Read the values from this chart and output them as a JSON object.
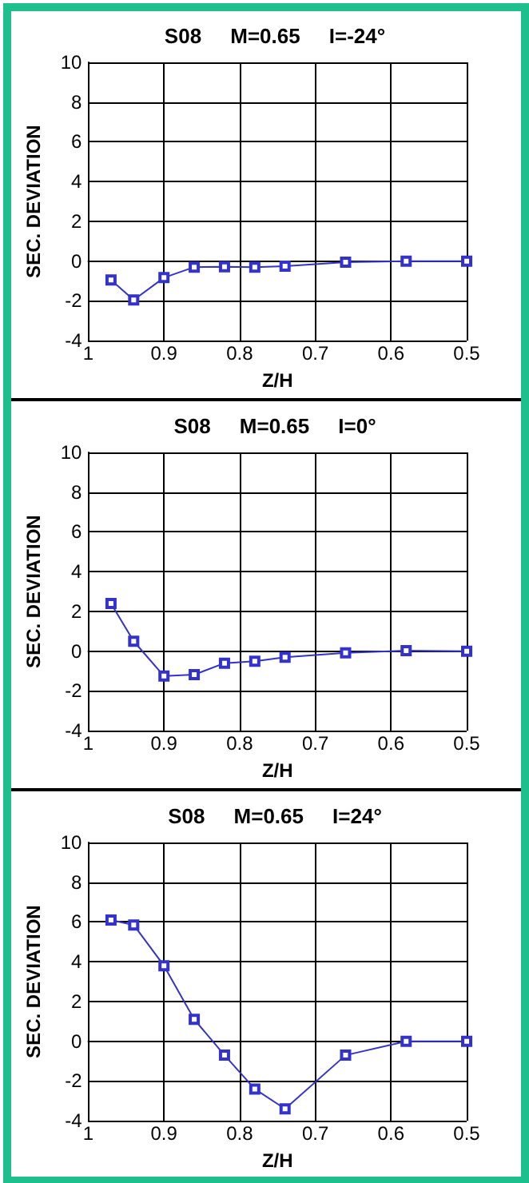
{
  "chart_data": [
    {
      "type": "line",
      "title": "S08     M=0.65     I=-24°",
      "xlabel": "Z/H",
      "ylabel": "SEC. DEVIATION",
      "xlim": [
        1,
        0.5
      ],
      "xticks": [
        1,
        0.9,
        0.8,
        0.7,
        0.6,
        0.5
      ],
      "ylim": [
        -4,
        10
      ],
      "yticks": [
        -4,
        -2,
        0,
        2,
        4,
        6,
        8,
        10
      ],
      "grid": true,
      "marker": "square",
      "line_style": "solid",
      "x": [
        0.97,
        0.94,
        0.9,
        0.86,
        0.82,
        0.78,
        0.74,
        0.66,
        0.58,
        0.5
      ],
      "series": [
        {
          "color": "#3333cc",
          "values": [
            -0.95,
            -1.95,
            -0.83,
            -0.3,
            -0.28,
            -0.3,
            -0.25,
            -0.05,
            0,
            0
          ]
        }
      ]
    },
    {
      "type": "line",
      "title": "S08     M=0.65     I=0°",
      "xlabel": "Z/H",
      "ylabel": "SEC. DEVIATION",
      "xlim": [
        1,
        0.5
      ],
      "xticks": [
        1,
        0.9,
        0.8,
        0.7,
        0.6,
        0.5
      ],
      "ylim": [
        -4,
        10
      ],
      "yticks": [
        -4,
        -2,
        0,
        2,
        4,
        6,
        8,
        10
      ],
      "grid": true,
      "marker": "square",
      "line_style": "solid",
      "x": [
        0.97,
        0.94,
        0.9,
        0.86,
        0.82,
        0.78,
        0.74,
        0.66,
        0.58,
        0.5
      ],
      "series": [
        {
          "color": "#3333cc",
          "values": [
            2.4,
            0.5,
            -1.25,
            -1.18,
            -0.6,
            -0.5,
            -0.3,
            -0.08,
            0.03,
            0
          ]
        }
      ]
    },
    {
      "type": "line",
      "title": "S08     M=0.65     I=24°",
      "xlabel": "Z/H",
      "ylabel": "SEC. DEVIATION",
      "xlim": [
        1,
        0.5
      ],
      "xticks": [
        1,
        0.9,
        0.8,
        0.7,
        0.6,
        0.5
      ],
      "ylim": [
        -4,
        10
      ],
      "yticks": [
        -4,
        -2,
        0,
        2,
        4,
        6,
        8,
        10
      ],
      "grid": true,
      "marker": "square",
      "line_style": "solid",
      "x": [
        0.97,
        0.94,
        0.9,
        0.86,
        0.82,
        0.78,
        0.74,
        0.66,
        0.58,
        0.5
      ],
      "series": [
        {
          "color": "#3333cc",
          "values": [
            6.1,
            5.85,
            3.8,
            1.1,
            -0.7,
            -2.4,
            -3.4,
            -0.7,
            0,
            0
          ]
        }
      ]
    }
  ]
}
